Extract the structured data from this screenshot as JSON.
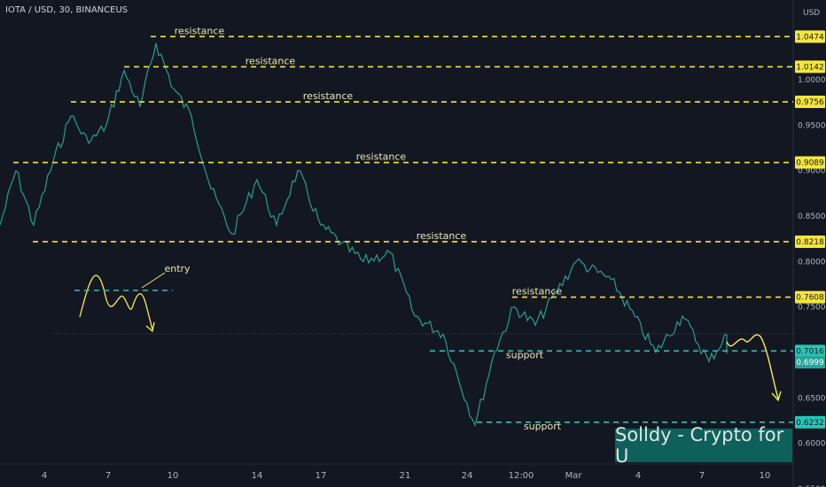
{
  "header": {
    "symbol": "IOTA / USD, 30, BINANCEUS"
  },
  "axis": {
    "currency": "USD"
  },
  "watermark": "Solldy - Crypto for U",
  "chart_data": {
    "type": "line",
    "y_axis_ticks": [
      "1.0000",
      "0.9500",
      "0.9000",
      "0.8500",
      "0.8000",
      "0.7500",
      "0.7000",
      "0.6500",
      "0.6000",
      "0.5500"
    ],
    "x_axis_ticks": [
      "4",
      "7",
      "10",
      "14",
      "17",
      "21",
      "24",
      "12:00",
      "Mar",
      "4",
      "7",
      "10"
    ],
    "price_levels": [
      {
        "value": 1.0474,
        "label": "1.0474",
        "type": "resistance",
        "text": "resistance"
      },
      {
        "value": 1.0142,
        "label": "1.0142",
        "type": "resistance",
        "text": "resistance"
      },
      {
        "value": 0.9756,
        "label": "0.9756",
        "type": "resistance",
        "text": "resistance"
      },
      {
        "value": 0.9089,
        "label": "0.9089",
        "type": "resistance",
        "text": "resistance"
      },
      {
        "value": 0.8218,
        "label": "0.8218",
        "type": "resistance",
        "text": "resistance"
      },
      {
        "value": 0.7608,
        "label": "0.7608",
        "type": "resistance",
        "text": "resistance"
      },
      {
        "value": 0.7016,
        "label": "0.7016",
        "type": "support",
        "text": "support"
      },
      {
        "value": 0.6232,
        "label": "0.6232",
        "type": "support",
        "text": "support"
      }
    ],
    "current_price": {
      "value": 0.6999,
      "label": "0.6999"
    },
    "entry_label": "entry",
    "price_path": [
      {
        "x": "1",
        "y": 0.84
      },
      {
        "x": "2",
        "y": 0.9
      },
      {
        "x": "3",
        "y": 0.84
      },
      {
        "x": "4",
        "y": 0.91
      },
      {
        "x": "5",
        "y": 0.96
      },
      {
        "x": "6",
        "y": 0.93
      },
      {
        "x": "7",
        "y": 0.95
      },
      {
        "x": "8",
        "y": 1.01
      },
      {
        "x": "9",
        "y": 0.97
      },
      {
        "x": "10",
        "y": 1.04
      },
      {
        "x": "11",
        "y": 0.99
      },
      {
        "x": "12",
        "y": 0.96
      },
      {
        "x": "13",
        "y": 0.88
      },
      {
        "x": "14",
        "y": 0.83
      },
      {
        "x": "15",
        "y": 0.89
      },
      {
        "x": "16",
        "y": 0.84
      },
      {
        "x": "17",
        "y": 0.9
      },
      {
        "x": "18",
        "y": 0.84
      },
      {
        "x": "19",
        "y": 0.82
      },
      {
        "x": "20",
        "y": 0.8
      },
      {
        "x": "21",
        "y": 0.81
      },
      {
        "x": "22",
        "y": 0.74
      },
      {
        "x": "23",
        "y": 0.72
      },
      {
        "x": "24",
        "y": 0.62
      },
      {
        "x": "25",
        "y": 0.7
      },
      {
        "x": "26",
        "y": 0.75
      },
      {
        "x": "27",
        "y": 0.73
      },
      {
        "x": "28",
        "y": 0.8
      },
      {
        "x": "29",
        "y": 0.78
      },
      {
        "x": "30",
        "y": 0.7
      },
      {
        "x": "31",
        "y": 0.74
      },
      {
        "x": "32",
        "y": 0.69
      },
      {
        "x": "33",
        "y": 0.72
      },
      {
        "x": "34",
        "y": 0.7
      }
    ]
  },
  "colors": {
    "background": "#131722",
    "resistance": "#f5e63b",
    "support": "#26c6b5",
    "price_line": "#2a9d8f",
    "projection": "#f7ec57",
    "text": "#d1d4dc"
  }
}
